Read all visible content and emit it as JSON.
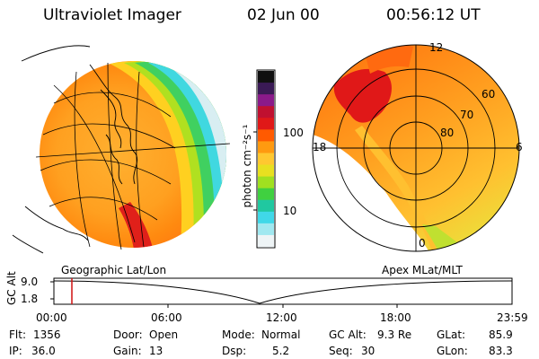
{
  "header": {
    "instrument": "Ultraviolet Imager",
    "date": "02 Jun 00",
    "time": "00:56:12 UT"
  },
  "colorbar": {
    "unit_label": "photon cm⁻²s⁻¹",
    "tick_100": "100",
    "tick_10": "10",
    "colors": [
      "#101010",
      "#3a1a55",
      "#8a1a8a",
      "#c01030",
      "#e01818",
      "#ff5a00",
      "#ff9a10",
      "#ffc830",
      "#e8e020",
      "#a0e020",
      "#40d040",
      "#20c8a0",
      "#40d8e8",
      "#a0e8f0",
      "#eef4f6"
    ]
  },
  "left_panel": {
    "label": "Geographic Lat/Lon"
  },
  "right_panel": {
    "label": "Apex MLat/MLT",
    "mlt_labels": {
      "top": "12",
      "left": "18",
      "right": "6",
      "bottom": "0"
    },
    "lat_labels": [
      "60",
      "70",
      "80"
    ]
  },
  "timeline": {
    "axis_label": "GC Alt",
    "y_ticks": [
      "9.0",
      "1.8"
    ],
    "x_ticks": [
      "00:00",
      "06:00",
      "12:00",
      "18:00",
      "23:59"
    ],
    "marker_time": "00:56:12"
  },
  "info": {
    "flt_label": "Flt:",
    "flt_value": "1356",
    "ip_label": "IP:",
    "ip_value": "36.0",
    "door_label": "Door:",
    "door_value": "Open",
    "gain_label": "Gain:",
    "gain_value": "13",
    "mode_label": "Mode:",
    "mode_value": "Normal",
    "dsp_label": "Dsp:",
    "dsp_value": "5.2",
    "gcalt_label": "GC Alt:",
    "gcalt_value": "9.3 Re",
    "seq_label": "Seq:",
    "seq_value": "30",
    "glat_label": "GLat:",
    "glat_value": "85.9",
    "glon_label": "GLon:",
    "glon_value": "83.3"
  }
}
